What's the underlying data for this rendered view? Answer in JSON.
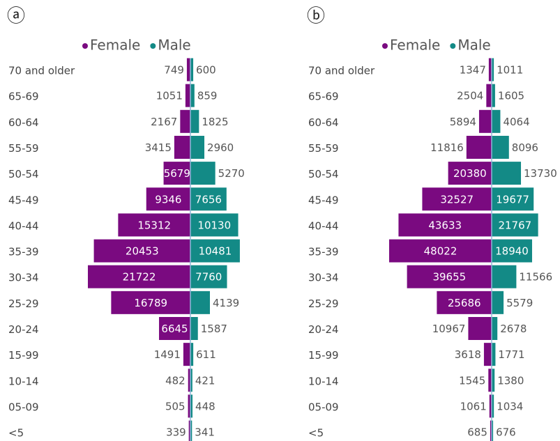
{
  "chart_data": [
    {
      "type": "pyramid",
      "panel_label": "ⓐ",
      "categories": [
        "70 and older",
        "65-69",
        "60-64",
        "55-59",
        "50-54",
        "45-49",
        "40-44",
        "35-39",
        "30-34",
        "25-29",
        "20-24",
        "15-99",
        "10-14",
        "05-09",
        "<5"
      ],
      "series": [
        {
          "name": "Female",
          "color": "#7a0a80",
          "values": [
            749,
            1051,
            2167,
            3415,
            5679,
            9346,
            15312,
            20453,
            21722,
            16789,
            6645,
            1491,
            482,
            505,
            339
          ]
        },
        {
          "name": "Male",
          "color": "#138a86",
          "values": [
            600,
            859,
            1825,
            2960,
            5270,
            7656,
            10130,
            10481,
            7760,
            4139,
            1587,
            611,
            421,
            448,
            341
          ]
        }
      ]
    },
    {
      "type": "pyramid",
      "panel_label": "ⓑ",
      "categories": [
        "70 and older",
        "65-69",
        "60-64",
        "55-59",
        "50-54",
        "45-49",
        "40-44",
        "35-39",
        "30-34",
        "25-29",
        "20-24",
        "15-99",
        "10-14",
        "05-09",
        "<5"
      ],
      "series": [
        {
          "name": "Female",
          "color": "#7a0a80",
          "values": [
            1347,
            2504,
            5894,
            11816,
            20380,
            32527,
            43633,
            48022,
            39655,
            25686,
            10967,
            3618,
            1545,
            1061,
            685
          ]
        },
        {
          "name": "Male",
          "color": "#138a86",
          "values": [
            1011,
            1605,
            4064,
            8096,
            13730,
            19677,
            21767,
            18940,
            11566,
            5579,
            2678,
            1771,
            1380,
            1034,
            676
          ]
        }
      ]
    }
  ]
}
